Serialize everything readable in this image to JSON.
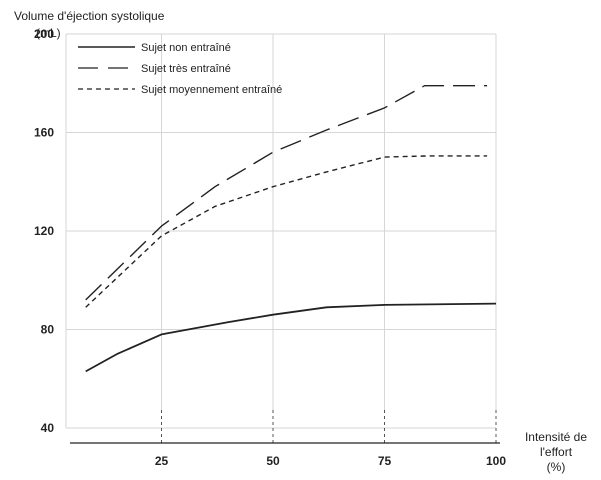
{
  "chart_data": {
    "type": "line",
    "ylabel": "Volume d'éjection systolique",
    "ylabel_unit": "(mL)",
    "xlabel": "Intensité de",
    "xlabel_line2": "l'effort",
    "xlabel_unit": "(%)",
    "xlim": [
      0,
      100
    ],
    "ylim": [
      40,
      200
    ],
    "xticks": [
      25,
      50,
      75,
      100
    ],
    "yticks": [
      40,
      80,
      120,
      160,
      200
    ],
    "grid": true,
    "legend_position": "top-left",
    "series": [
      {
        "name": "Sujet non entraîné",
        "style": "solid",
        "color": "#222222",
        "points": [
          [
            8,
            63
          ],
          [
            15,
            70
          ],
          [
            25,
            78
          ],
          [
            40,
            83
          ],
          [
            50,
            86
          ],
          [
            62,
            89
          ],
          [
            75,
            90
          ],
          [
            100,
            90.5
          ]
        ]
      },
      {
        "name": "Sujet  très entraîné",
        "style": "long-dash",
        "color": "#222222",
        "points": [
          [
            8,
            92
          ],
          [
            25,
            122
          ],
          [
            37,
            138
          ],
          [
            50,
            152
          ],
          [
            62,
            161
          ],
          [
            75,
            170
          ],
          [
            84,
            179
          ],
          [
            98,
            179
          ]
        ]
      },
      {
        "name": "Sujet moyennement entraîné",
        "style": "short-dash",
        "color": "#222222",
        "points": [
          [
            8,
            89
          ],
          [
            25,
            118
          ],
          [
            37,
            130
          ],
          [
            50,
            138
          ],
          [
            62,
            144
          ],
          [
            75,
            150
          ],
          [
            85,
            150.5
          ],
          [
            98,
            150.5
          ]
        ]
      }
    ]
  }
}
